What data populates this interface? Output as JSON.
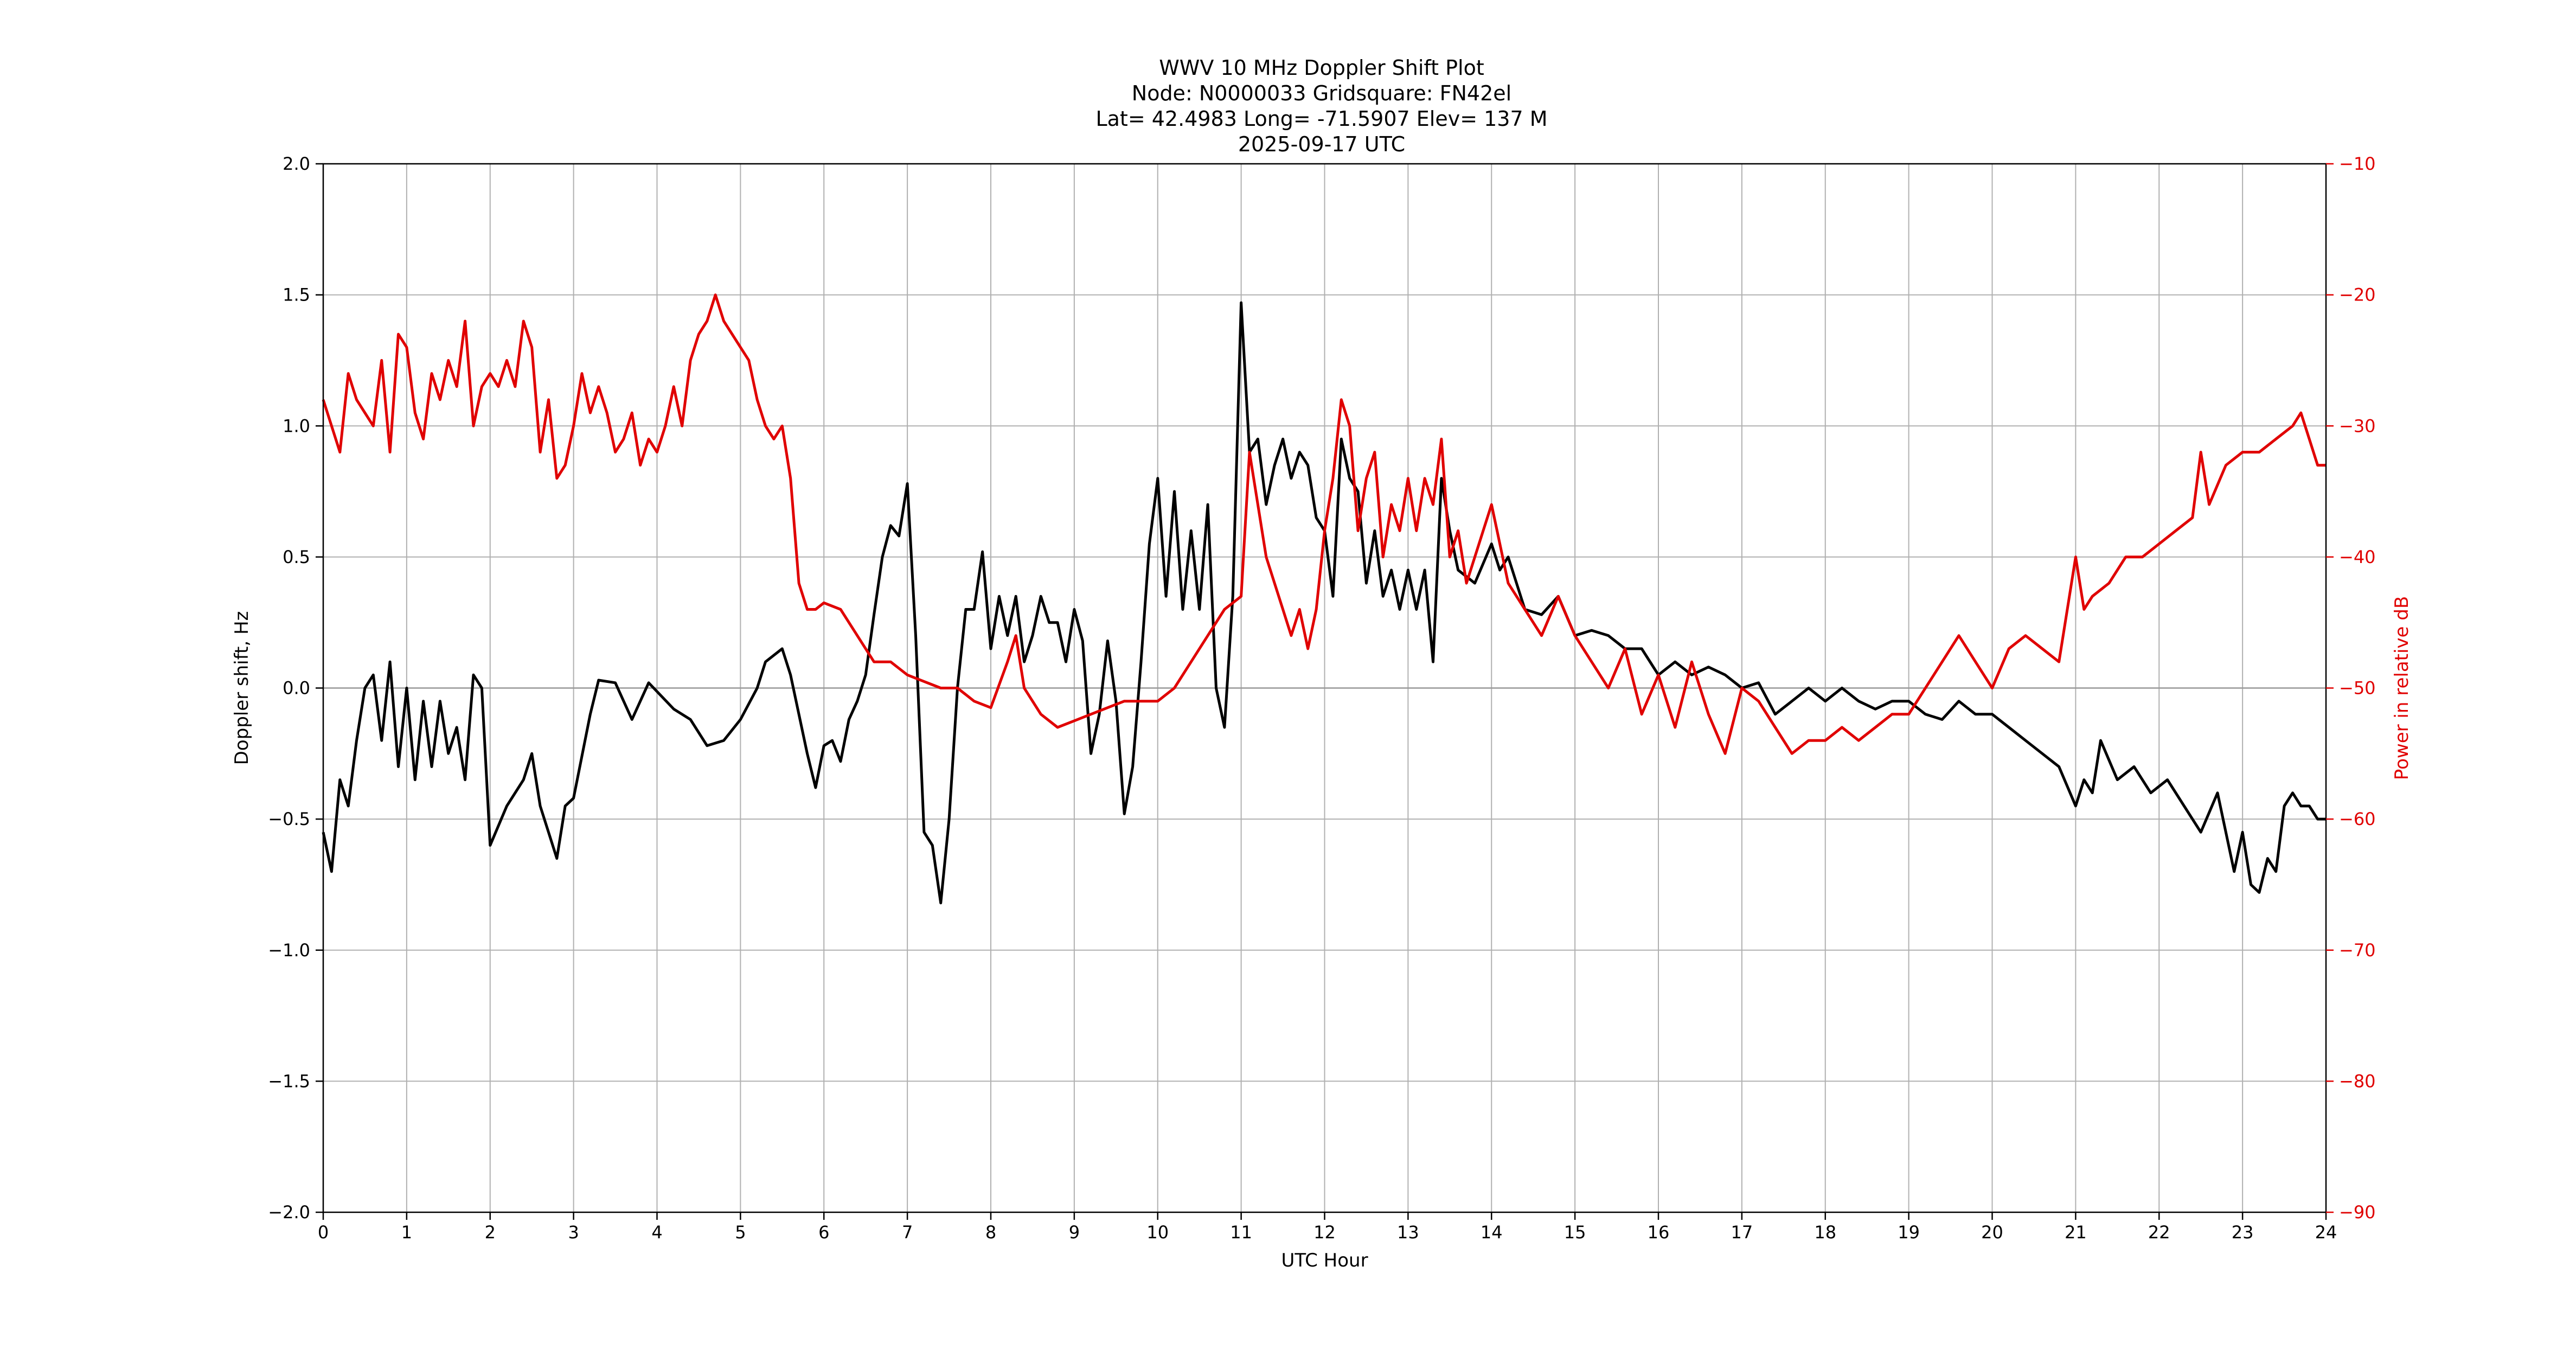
{
  "chart_data": {
    "type": "line",
    "title_lines": [
      "WWV 10 MHz Doppler Shift Plot",
      "Node:  N0000033     Gridsquare:  FN42el",
      "Lat= 42.4983    Long= -71.5907    Elev= 137 M",
      "2025-09-17  UTC"
    ],
    "xlabel": "UTC Hour",
    "ylabel_left": "Doppler shift, Hz",
    "ylabel_right": "Power in relative dB",
    "xlim": [
      0,
      24
    ],
    "ylim_left": [
      -2.0,
      2.0
    ],
    "ylim_right": [
      -90,
      -10
    ],
    "x_ticks": [
      0,
      1,
      2,
      3,
      4,
      5,
      6,
      7,
      8,
      9,
      10,
      11,
      12,
      13,
      14,
      15,
      16,
      17,
      18,
      19,
      20,
      21,
      22,
      23,
      24
    ],
    "y_left_tick_labels": [
      "2.0",
      "1.5",
      "1.0",
      "0.5",
      "0.0",
      "−0.5",
      "−1.0",
      "−1.5",
      "−2.0"
    ],
    "y_left_ticks": [
      2.0,
      1.5,
      1.0,
      0.5,
      0.0,
      -0.5,
      -1.0,
      -1.5,
      -2.0
    ],
    "y_right_tick_labels": [
      "−10",
      "−20",
      "−30",
      "−40",
      "−50",
      "−60",
      "−70",
      "−80",
      "−90"
    ],
    "y_right_ticks": [
      -10,
      -20,
      -30,
      -40,
      -50,
      -60,
      -70,
      -80,
      -90
    ],
    "grid": true,
    "zero_line": true,
    "series": [
      {
        "axis": "left",
        "color": "#000000",
        "x": [
          0.0,
          0.1,
          0.2,
          0.3,
          0.4,
          0.5,
          0.6,
          0.7,
          0.8,
          0.9,
          1.0,
          1.1,
          1.2,
          1.3,
          1.4,
          1.5,
          1.6,
          1.7,
          1.8,
          1.9,
          2.0,
          2.2,
          2.4,
          2.5,
          2.6,
          2.8,
          2.9,
          3.0,
          3.2,
          3.3,
          3.5,
          3.7,
          3.9,
          4.2,
          4.4,
          4.6,
          4.8,
          5.0,
          5.2,
          5.3,
          5.5,
          5.6,
          5.8,
          5.9,
          6.0,
          6.1,
          6.2,
          6.3,
          6.4,
          6.5,
          6.6,
          6.7,
          6.8,
          6.9,
          7.0,
          7.1,
          7.2,
          7.3,
          7.4,
          7.5,
          7.6,
          7.7,
          7.8,
          7.9,
          8.0,
          8.1,
          8.2,
          8.3,
          8.4,
          8.5,
          8.6,
          8.7,
          8.8,
          8.9,
          9.0,
          9.1,
          9.2,
          9.3,
          9.4,
          9.5,
          9.6,
          9.7,
          9.8,
          9.9,
          10.0,
          10.1,
          10.2,
          10.3,
          10.4,
          10.5,
          10.6,
          10.7,
          10.8,
          10.9,
          11.0,
          11.1,
          11.2,
          11.3,
          11.4,
          11.5,
          11.6,
          11.7,
          11.8,
          11.9,
          12.0,
          12.1,
          12.2,
          12.3,
          12.4,
          12.5,
          12.6,
          12.7,
          12.8,
          12.9,
          13.0,
          13.1,
          13.2,
          13.3,
          13.4,
          13.5,
          13.6,
          13.8,
          14.0,
          14.1,
          14.2,
          14.4,
          14.6,
          14.8,
          15.0,
          15.2,
          15.4,
          15.6,
          15.8,
          16.0,
          16.2,
          16.4,
          16.6,
          16.8,
          17.0,
          17.2,
          17.4,
          17.6,
          17.8,
          18.0,
          18.2,
          18.4,
          18.6,
          18.8,
          19.0,
          19.2,
          19.4,
          19.6,
          19.8,
          20.0,
          20.2,
          20.4,
          20.6,
          20.8,
          21.0,
          21.1,
          21.2,
          21.3,
          21.5,
          21.7,
          21.9,
          22.1,
          22.3,
          22.5,
          22.7,
          22.9,
          23.0,
          23.1,
          23.2,
          23.3,
          23.4,
          23.5,
          23.6,
          23.7,
          23.8,
          23.9,
          24.0
        ],
        "y": [
          -0.55,
          -0.7,
          -0.35,
          -0.45,
          -0.2,
          0.0,
          0.05,
          -0.2,
          0.1,
          -0.3,
          0.0,
          -0.35,
          -0.05,
          -0.3,
          -0.05,
          -0.25,
          -0.15,
          -0.35,
          0.05,
          0.0,
          -0.6,
          -0.45,
          -0.35,
          -0.25,
          -0.45,
          -0.65,
          -0.45,
          -0.42,
          -0.1,
          0.03,
          0.02,
          -0.12,
          0.02,
          -0.08,
          -0.12,
          -0.22,
          -0.2,
          -0.12,
          0.0,
          0.1,
          0.15,
          0.05,
          -0.25,
          -0.38,
          -0.22,
          -0.2,
          -0.28,
          -0.12,
          -0.05,
          0.05,
          0.28,
          0.5,
          0.62,
          0.58,
          0.78,
          0.2,
          -0.55,
          -0.6,
          -0.82,
          -0.5,
          0.0,
          0.3,
          0.3,
          0.52,
          0.15,
          0.35,
          0.2,
          0.35,
          0.1,
          0.2,
          0.35,
          0.25,
          0.25,
          0.1,
          0.3,
          0.18,
          -0.25,
          -0.1,
          0.18,
          -0.05,
          -0.48,
          -0.3,
          0.1,
          0.55,
          0.8,
          0.35,
          0.75,
          0.3,
          0.6,
          0.3,
          0.7,
          0.0,
          -0.15,
          0.35,
          1.47,
          0.9,
          0.95,
          0.7,
          0.85,
          0.95,
          0.8,
          0.9,
          0.85,
          0.65,
          0.6,
          0.35,
          0.95,
          0.8,
          0.75,
          0.4,
          0.6,
          0.35,
          0.45,
          0.3,
          0.45,
          0.3,
          0.45,
          0.1,
          0.8,
          0.6,
          0.45,
          0.4,
          0.55,
          0.45,
          0.5,
          0.3,
          0.28,
          0.35,
          0.2,
          0.22,
          0.2,
          0.15,
          0.15,
          0.05,
          0.1,
          0.05,
          0.08,
          0.05,
          0.0,
          0.02,
          -0.1,
          -0.05,
          0.0,
          -0.05,
          0.0,
          -0.05,
          -0.08,
          -0.05,
          -0.05,
          -0.1,
          -0.12,
          -0.05,
          -0.1,
          -0.1,
          -0.15,
          -0.2,
          -0.25,
          -0.3,
          -0.45,
          -0.35,
          -0.4,
          -0.2,
          -0.35,
          -0.3,
          -0.4,
          -0.35,
          -0.45,
          -0.55,
          -0.4,
          -0.7,
          -0.55,
          -0.75,
          -0.78,
          -0.65,
          -0.7,
          -0.45,
          -0.4,
          -0.45,
          -0.45,
          -0.5,
          -0.5
        ]
      },
      {
        "axis": "right",
        "color": "#e00000",
        "x": [
          0.0,
          0.1,
          0.2,
          0.3,
          0.4,
          0.5,
          0.6,
          0.7,
          0.8,
          0.9,
          1.0,
          1.1,
          1.2,
          1.3,
          1.4,
          1.5,
          1.6,
          1.7,
          1.8,
          1.9,
          2.0,
          2.1,
          2.2,
          2.3,
          2.4,
          2.5,
          2.6,
          2.7,
          2.8,
          2.9,
          3.0,
          3.1,
          3.2,
          3.3,
          3.4,
          3.5,
          3.6,
          3.7,
          3.8,
          3.9,
          4.0,
          4.1,
          4.2,
          4.3,
          4.4,
          4.5,
          4.6,
          4.7,
          4.8,
          4.9,
          5.0,
          5.1,
          5.2,
          5.3,
          5.4,
          5.5,
          5.6,
          5.7,
          5.8,
          5.9,
          6.0,
          6.2,
          6.4,
          6.6,
          6.8,
          7.0,
          7.2,
          7.4,
          7.6,
          7.8,
          8.0,
          8.2,
          8.3,
          8.4,
          8.6,
          8.8,
          9.0,
          9.2,
          9.4,
          9.6,
          9.8,
          10.0,
          10.2,
          10.4,
          10.6,
          10.8,
          11.0,
          11.1,
          11.2,
          11.3,
          11.4,
          11.5,
          11.6,
          11.7,
          11.8,
          11.9,
          12.0,
          12.1,
          12.2,
          12.3,
          12.4,
          12.5,
          12.6,
          12.7,
          12.8,
          12.9,
          13.0,
          13.1,
          13.2,
          13.3,
          13.4,
          13.5,
          13.6,
          13.7,
          13.8,
          13.9,
          14.0,
          14.2,
          14.4,
          14.6,
          14.8,
          15.0,
          15.2,
          15.4,
          15.6,
          15.8,
          16.0,
          16.2,
          16.4,
          16.6,
          16.8,
          17.0,
          17.2,
          17.4,
          17.6,
          17.8,
          18.0,
          18.2,
          18.4,
          18.6,
          18.8,
          19.0,
          19.2,
          19.4,
          19.6,
          19.8,
          20.0,
          20.2,
          20.4,
          20.6,
          20.8,
          21.0,
          21.1,
          21.2,
          21.4,
          21.6,
          21.8,
          22.0,
          22.2,
          22.4,
          22.5,
          22.6,
          22.8,
          23.0,
          23.2,
          23.4,
          23.6,
          23.7,
          23.8,
          23.9,
          24.0
        ],
        "y": [
          -28.0,
          -30.0,
          -32.0,
          -26.0,
          -28.0,
          -29.0,
          -30.0,
          -25.0,
          -32.0,
          -23.0,
          -24.0,
          -29.0,
          -31.0,
          -26.0,
          -28.0,
          -25.0,
          -27.0,
          -22.0,
          -30.0,
          -27.0,
          -26.0,
          -27.0,
          -25.0,
          -27.0,
          -22.0,
          -24.0,
          -32.0,
          -28.0,
          -34.0,
          -33.0,
          -30.0,
          -26.0,
          -29.0,
          -27.0,
          -29.0,
          -32.0,
          -31.0,
          -29.0,
          -33.0,
          -31.0,
          -32.0,
          -30.0,
          -27.0,
          -30.0,
          -25.0,
          -23.0,
          -22.0,
          -20.0,
          -22.0,
          -23.0,
          -24.0,
          -25.0,
          -28.0,
          -30.0,
          -31.0,
          -30.0,
          -34.0,
          -42.0,
          -44.0,
          -44.0,
          -43.5,
          -44.0,
          -46.0,
          -48.0,
          -48.0,
          -49.0,
          -49.5,
          -50.0,
          -50.0,
          -51.0,
          -51.5,
          -48.0,
          -46.0,
          -50.0,
          -52.0,
          -53.0,
          -52.5,
          -52.0,
          -51.5,
          -51.0,
          -51.0,
          -51.0,
          -50.0,
          -48.0,
          -46.0,
          -44.0,
          -43.0,
          -32.0,
          -36.0,
          -40.0,
          -42.0,
          -44.0,
          -46.0,
          -44.0,
          -47.0,
          -44.0,
          -38.0,
          -34.0,
          -28.0,
          -30.0,
          -38.0,
          -34.0,
          -32.0,
          -40.0,
          -36.0,
          -38.0,
          -34.0,
          -38.0,
          -34.0,
          -36.0,
          -31.0,
          -40.0,
          -38.0,
          -42.0,
          -40.0,
          -38.0,
          -36.0,
          -42.0,
          -44.0,
          -46.0,
          -43.0,
          -46.0,
          -48.0,
          -50.0,
          -47.0,
          -52.0,
          -49.0,
          -53.0,
          -48.0,
          -52.0,
          -55.0,
          -50.0,
          -51.0,
          -53.0,
          -55.0,
          -54.0,
          -54.0,
          -53.0,
          -54.0,
          -53.0,
          -52.0,
          -52.0,
          -50.0,
          -48.0,
          -46.0,
          -48.0,
          -50.0,
          -47.0,
          -46.0,
          -47.0,
          -48.0,
          -40.0,
          -44.0,
          -43.0,
          -42.0,
          -40.0,
          -40.0,
          -39.0,
          -38.0,
          -37.0,
          -32.0,
          -36.0,
          -33.0,
          -32.0,
          -32.0,
          -31.0,
          -30.0,
          -29.0,
          -31.0,
          -33.0,
          -33.0
        ]
      }
    ]
  }
}
